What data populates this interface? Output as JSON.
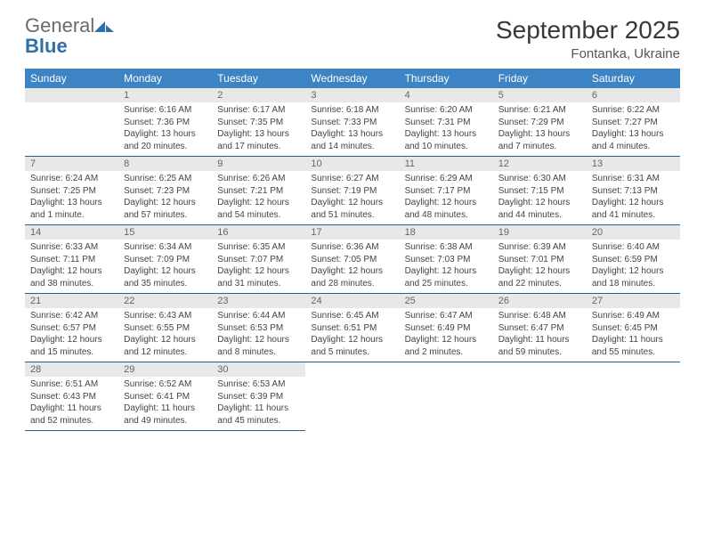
{
  "brand": {
    "word1": "General",
    "word2": "Blue"
  },
  "title": "September 2025",
  "location": "Fontanka, Ukraine",
  "weekday_labels": [
    "Sunday",
    "Monday",
    "Tuesday",
    "Wednesday",
    "Thursday",
    "Friday",
    "Saturday"
  ],
  "style": {
    "header_bg": "#3d84c4",
    "header_text": "#ffffff",
    "rule_color": "#2a5f91",
    "daynum_bg": "#e8e8e8",
    "daynum_text": "#666666",
    "body_text": "#444444",
    "title_color": "#383838",
    "logo_gray": "#6a6a6a",
    "logo_blue": "#2f6fa8",
    "title_fontsize": 28,
    "subtitle_fontsize": 15,
    "th_fontsize": 12,
    "cell_fontsize": 10
  },
  "weeks": [
    [
      null,
      {
        "n": "1",
        "sunrise": "6:16 AM",
        "sunset": "7:36 PM",
        "daylight": "13 hours and 20 minutes."
      },
      {
        "n": "2",
        "sunrise": "6:17 AM",
        "sunset": "7:35 PM",
        "daylight": "13 hours and 17 minutes."
      },
      {
        "n": "3",
        "sunrise": "6:18 AM",
        "sunset": "7:33 PM",
        "daylight": "13 hours and 14 minutes."
      },
      {
        "n": "4",
        "sunrise": "6:20 AM",
        "sunset": "7:31 PM",
        "daylight": "13 hours and 10 minutes."
      },
      {
        "n": "5",
        "sunrise": "6:21 AM",
        "sunset": "7:29 PM",
        "daylight": "13 hours and 7 minutes."
      },
      {
        "n": "6",
        "sunrise": "6:22 AM",
        "sunset": "7:27 PM",
        "daylight": "13 hours and 4 minutes."
      }
    ],
    [
      {
        "n": "7",
        "sunrise": "6:24 AM",
        "sunset": "7:25 PM",
        "daylight": "13 hours and 1 minute."
      },
      {
        "n": "8",
        "sunrise": "6:25 AM",
        "sunset": "7:23 PM",
        "daylight": "12 hours and 57 minutes."
      },
      {
        "n": "9",
        "sunrise": "6:26 AM",
        "sunset": "7:21 PM",
        "daylight": "12 hours and 54 minutes."
      },
      {
        "n": "10",
        "sunrise": "6:27 AM",
        "sunset": "7:19 PM",
        "daylight": "12 hours and 51 minutes."
      },
      {
        "n": "11",
        "sunrise": "6:29 AM",
        "sunset": "7:17 PM",
        "daylight": "12 hours and 48 minutes."
      },
      {
        "n": "12",
        "sunrise": "6:30 AM",
        "sunset": "7:15 PM",
        "daylight": "12 hours and 44 minutes."
      },
      {
        "n": "13",
        "sunrise": "6:31 AM",
        "sunset": "7:13 PM",
        "daylight": "12 hours and 41 minutes."
      }
    ],
    [
      {
        "n": "14",
        "sunrise": "6:33 AM",
        "sunset": "7:11 PM",
        "daylight": "12 hours and 38 minutes."
      },
      {
        "n": "15",
        "sunrise": "6:34 AM",
        "sunset": "7:09 PM",
        "daylight": "12 hours and 35 minutes."
      },
      {
        "n": "16",
        "sunrise": "6:35 AM",
        "sunset": "7:07 PM",
        "daylight": "12 hours and 31 minutes."
      },
      {
        "n": "17",
        "sunrise": "6:36 AM",
        "sunset": "7:05 PM",
        "daylight": "12 hours and 28 minutes."
      },
      {
        "n": "18",
        "sunrise": "6:38 AM",
        "sunset": "7:03 PM",
        "daylight": "12 hours and 25 minutes."
      },
      {
        "n": "19",
        "sunrise": "6:39 AM",
        "sunset": "7:01 PM",
        "daylight": "12 hours and 22 minutes."
      },
      {
        "n": "20",
        "sunrise": "6:40 AM",
        "sunset": "6:59 PM",
        "daylight": "12 hours and 18 minutes."
      }
    ],
    [
      {
        "n": "21",
        "sunrise": "6:42 AM",
        "sunset": "6:57 PM",
        "daylight": "12 hours and 15 minutes."
      },
      {
        "n": "22",
        "sunrise": "6:43 AM",
        "sunset": "6:55 PM",
        "daylight": "12 hours and 12 minutes."
      },
      {
        "n": "23",
        "sunrise": "6:44 AM",
        "sunset": "6:53 PM",
        "daylight": "12 hours and 8 minutes."
      },
      {
        "n": "24",
        "sunrise": "6:45 AM",
        "sunset": "6:51 PM",
        "daylight": "12 hours and 5 minutes."
      },
      {
        "n": "25",
        "sunrise": "6:47 AM",
        "sunset": "6:49 PM",
        "daylight": "12 hours and 2 minutes."
      },
      {
        "n": "26",
        "sunrise": "6:48 AM",
        "sunset": "6:47 PM",
        "daylight": "11 hours and 59 minutes."
      },
      {
        "n": "27",
        "sunrise": "6:49 AM",
        "sunset": "6:45 PM",
        "daylight": "11 hours and 55 minutes."
      }
    ],
    [
      {
        "n": "28",
        "sunrise": "6:51 AM",
        "sunset": "6:43 PM",
        "daylight": "11 hours and 52 minutes."
      },
      {
        "n": "29",
        "sunrise": "6:52 AM",
        "sunset": "6:41 PM",
        "daylight": "11 hours and 49 minutes."
      },
      {
        "n": "30",
        "sunrise": "6:53 AM",
        "sunset": "6:39 PM",
        "daylight": "11 hours and 45 minutes."
      },
      null,
      null,
      null,
      null
    ]
  ],
  "labels": {
    "sunrise": "Sunrise: ",
    "sunset": "Sunset: ",
    "daylight": "Daylight: "
  }
}
